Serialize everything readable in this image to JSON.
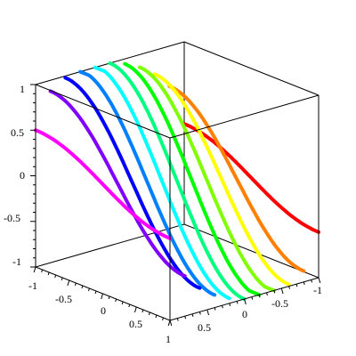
{
  "chart_data": {
    "type": "line",
    "subtype": "3d-surface-contours",
    "title": "",
    "projection": "boxed 3D axes, isometric-style view",
    "x_range": [
      -1,
      1
    ],
    "y_range": [
      -1,
      1
    ],
    "z_range": [
      -1,
      1
    ],
    "surface": "z = sin(pi*x) relation, contoured along y = const levels, rainbow-shaded by y",
    "contour_levels_y": [
      -1,
      -0.8,
      -0.6,
      -0.4,
      -0.2,
      0,
      0.2,
      0.4,
      0.6,
      0.8,
      1
    ],
    "colormap": "hue rainbow: red (y=-1) → orange → yellow → green → cyan → blue → purple → magenta (y=1)",
    "grid": false,
    "legend": "none",
    "axes": {
      "z_ticks": [
        "1",
        "0.5",
        "0",
        "-0.5",
        "-1"
      ],
      "x_ticks": [
        "-1",
        "-0.5",
        "0",
        "0.5",
        "1"
      ],
      "y_ticks": [
        "1",
        "0.5",
        "0",
        "-0.5",
        "-1"
      ]
    }
  }
}
